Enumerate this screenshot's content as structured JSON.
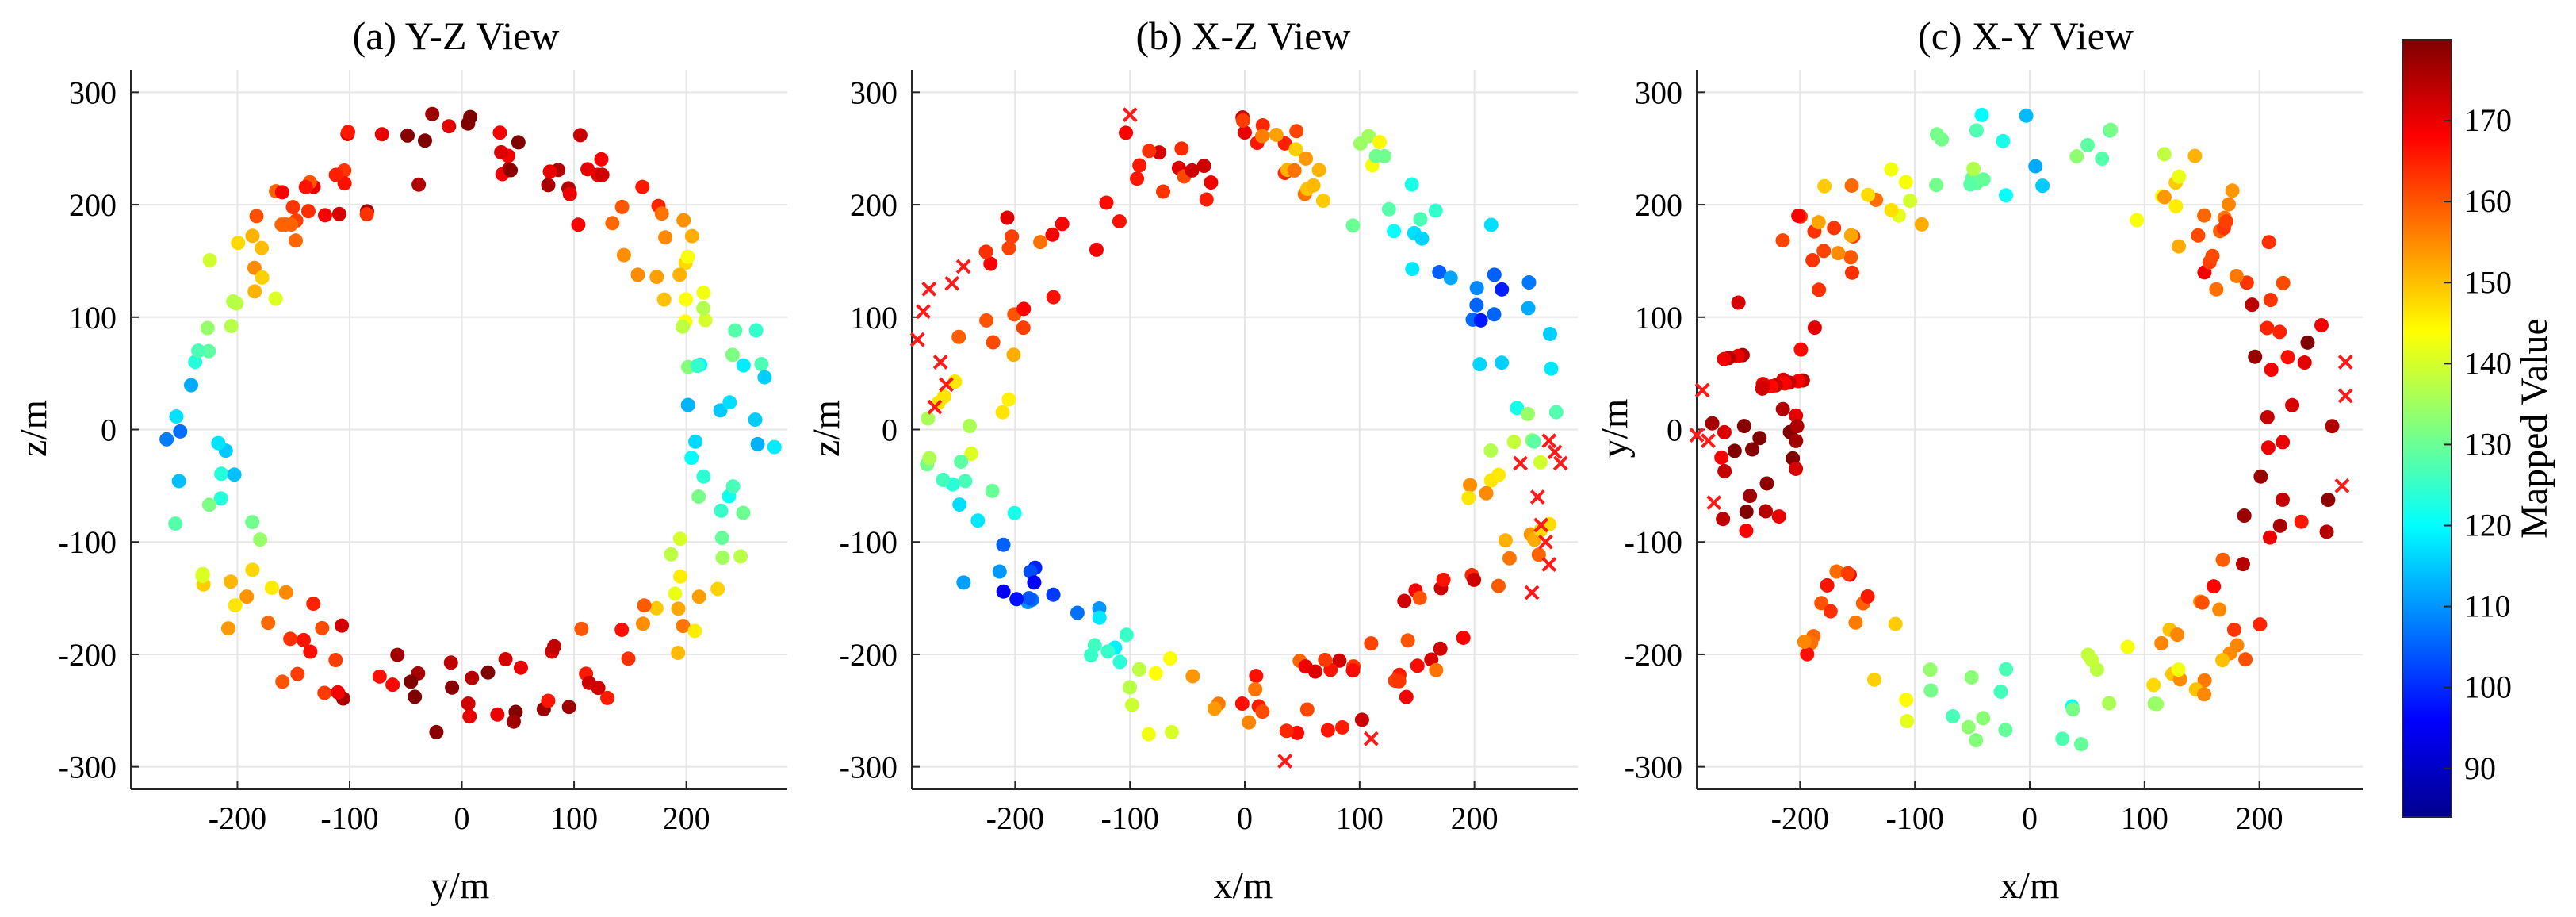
{
  "colorbar": {
    "label": "Mapped Value",
    "range": [
      84,
      180
    ],
    "ticks": [
      90,
      100,
      110,
      120,
      130,
      140,
      150,
      160,
      170
    ],
    "colormap": "jet"
  },
  "chart_data": [
    {
      "type": "scatter",
      "title": "(a) Y-Z View",
      "xlabel": "y/m",
      "ylabel": "z/m",
      "xlim": [
        -295,
        290
      ],
      "ylim": [
        -320,
        320
      ],
      "xticks": [
        -200,
        -100,
        0,
        100,
        200
      ],
      "yticks": [
        -300,
        -200,
        -100,
        0,
        100,
        200,
        300
      ],
      "grid": true,
      "cross_values": [],
      "colormode": "yz"
    },
    {
      "type": "scatter",
      "title": "(b) X-Z View",
      "xlabel": "x/m",
      "ylabel": "z/m",
      "xlim": [
        -290,
        290
      ],
      "ylim": [
        -320,
        320
      ],
      "xticks": [
        -200,
        -100,
        0,
        100,
        200
      ],
      "yticks": [
        -300,
        -200,
        -100,
        0,
        100,
        200,
        300
      ],
      "grid": true,
      "cross_values": [
        [
          -285,
          80
        ],
        [
          -280,
          105
        ],
        [
          -275,
          125
        ],
        [
          -265,
          60
        ],
        [
          -260,
          40
        ],
        [
          -270,
          20
        ],
        [
          -255,
          130
        ],
        [
          -245,
          145
        ],
        [
          -100,
          280
        ],
        [
          35,
          -295
        ],
        [
          110,
          -275
        ],
        [
          240,
          -30
        ],
        [
          255,
          -60
        ],
        [
          262,
          -100
        ],
        [
          265,
          -120
        ],
        [
          250,
          -145
        ],
        [
          270,
          -20
        ],
        [
          275,
          -30
        ],
        [
          265,
          -10
        ],
        [
          258,
          -85
        ]
      ],
      "colormode": "xz"
    },
    {
      "type": "scatter",
      "title": "(c) X-Y View",
      "xlabel": "x/m",
      "ylabel": "y/m",
      "xlim": [
        -290,
        290
      ],
      "ylim": [
        -320,
        320
      ],
      "xticks": [
        -200,
        -100,
        0,
        100,
        200
      ],
      "yticks": [
        -300,
        -200,
        -100,
        0,
        100,
        200,
        300
      ],
      "grid": true,
      "cross_values": [
        [
          -285,
          35
        ],
        [
          -290,
          -5
        ],
        [
          -280,
          -10
        ],
        [
          -275,
          -65
        ],
        [
          275,
          60
        ],
        [
          275,
          30
        ],
        [
          272,
          -50
        ]
      ],
      "colormode": "xy"
    }
  ]
}
